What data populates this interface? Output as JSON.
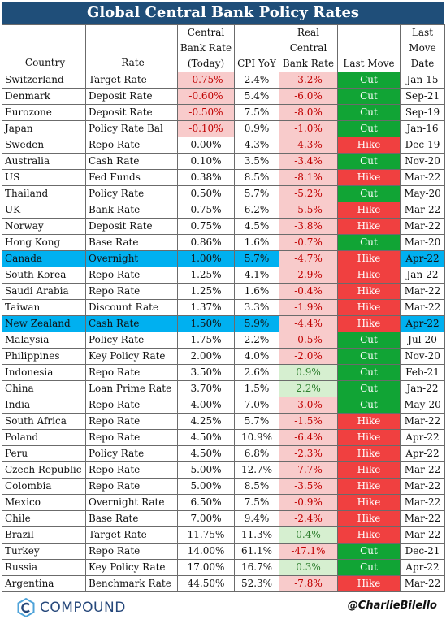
{
  "title": "Global Central Bank Policy Rates",
  "columns": {
    "country": "Country",
    "rate": "Rate",
    "cb_rate": [
      "Central",
      "Bank Rate",
      "(Today)"
    ],
    "cpi": "CPI YoY",
    "real": [
      "Real",
      "Central",
      "Bank Rate"
    ],
    "last_move": "Last Move",
    "last_move_date": [
      "Last",
      "Move",
      "Date"
    ]
  },
  "rows": [
    {
      "country": "Switzerland",
      "rate_name": "Target Rate",
      "rate": "-0.75%",
      "cpi": "2.4%",
      "real": "-3.2%",
      "move": "Cut",
      "date": "Jan-15"
    },
    {
      "country": "Denmark",
      "rate_name": "Deposit Rate",
      "rate": "-0.60%",
      "cpi": "5.4%",
      "real": "-6.0%",
      "move": "Cut",
      "date": "Sep-21"
    },
    {
      "country": "Eurozone",
      "rate_name": "Deposit Rate",
      "rate": "-0.50%",
      "cpi": "7.5%",
      "real": "-8.0%",
      "move": "Cut",
      "date": "Sep-19"
    },
    {
      "country": "Japan",
      "rate_name": "Policy Rate Bal",
      "rate": "-0.10%",
      "cpi": "0.9%",
      "real": "-1.0%",
      "move": "Cut",
      "date": "Jan-16"
    },
    {
      "country": "Sweden",
      "rate_name": "Repo Rate",
      "rate": "0.00%",
      "cpi": "4.3%",
      "real": "-4.3%",
      "move": "Hike",
      "date": "Dec-19"
    },
    {
      "country": "Australia",
      "rate_name": "Cash Rate",
      "rate": "0.10%",
      "cpi": "3.5%",
      "real": "-3.4%",
      "move": "Cut",
      "date": "Nov-20"
    },
    {
      "country": "US",
      "rate_name": "Fed Funds",
      "rate": "0.38%",
      "cpi": "8.5%",
      "real": "-8.1%",
      "move": "Hike",
      "date": "Mar-22"
    },
    {
      "country": "Thailand",
      "rate_name": "Policy Rate",
      "rate": "0.50%",
      "cpi": "5.7%",
      "real": "-5.2%",
      "move": "Cut",
      "date": "May-20"
    },
    {
      "country": "UK",
      "rate_name": "Bank Rate",
      "rate": "0.75%",
      "cpi": "6.2%",
      "real": "-5.5%",
      "move": "Hike",
      "date": "Mar-22"
    },
    {
      "country": "Norway",
      "rate_name": "Deposit Rate",
      "rate": "0.75%",
      "cpi": "4.5%",
      "real": "-3.8%",
      "move": "Hike",
      "date": "Mar-22"
    },
    {
      "country": "Hong Kong",
      "rate_name": "Base Rate",
      "rate": "0.86%",
      "cpi": "1.6%",
      "real": "-0.7%",
      "move": "Cut",
      "date": "Mar-20"
    },
    {
      "country": "Canada",
      "rate_name": "Overnight",
      "rate": "1.00%",
      "cpi": "5.7%",
      "real": "-4.7%",
      "move": "Hike",
      "date": "Apr-22",
      "highlight": true
    },
    {
      "country": "South Korea",
      "rate_name": "Repo Rate",
      "rate": "1.25%",
      "cpi": "4.1%",
      "real": "-2.9%",
      "move": "Hike",
      "date": "Jan-22"
    },
    {
      "country": "Saudi Arabia",
      "rate_name": "Repo Rate",
      "rate": "1.25%",
      "cpi": "1.6%",
      "real": "-0.4%",
      "move": "Hike",
      "date": "Mar-22"
    },
    {
      "country": "Taiwan",
      "rate_name": "Discount Rate",
      "rate": "1.37%",
      "cpi": "3.3%",
      "real": "-1.9%",
      "move": "Hike",
      "date": "Mar-22"
    },
    {
      "country": "New Zealand",
      "rate_name": "Cash Rate",
      "rate": "1.50%",
      "cpi": "5.9%",
      "real": "-4.4%",
      "move": "Hike",
      "date": "Apr-22",
      "highlight": true
    },
    {
      "country": "Malaysia",
      "rate_name": "Policy Rate",
      "rate": "1.75%",
      "cpi": "2.2%",
      "real": "-0.5%",
      "move": "Cut",
      "date": "Jul-20"
    },
    {
      "country": "Philippines",
      "rate_name": "Key Policy Rate",
      "rate": "2.00%",
      "cpi": "4.0%",
      "real": "-2.0%",
      "move": "Cut",
      "date": "Nov-20"
    },
    {
      "country": "Indonesia",
      "rate_name": "Repo Rate",
      "rate": "3.50%",
      "cpi": "2.6%",
      "real": "0.9%",
      "move": "Cut",
      "date": "Feb-21"
    },
    {
      "country": "China",
      "rate_name": "Loan Prime Rate",
      "rate": "3.70%",
      "cpi": "1.5%",
      "real": "2.2%",
      "move": "Cut",
      "date": "Jan-22"
    },
    {
      "country": "India",
      "rate_name": "Repo Rate",
      "rate": "4.00%",
      "cpi": "7.0%",
      "real": "-3.0%",
      "move": "Cut",
      "date": "May-20"
    },
    {
      "country": "South Africa",
      "rate_name": "Repo Rate",
      "rate": "4.25%",
      "cpi": "5.7%",
      "real": "-1.5%",
      "move": "Hike",
      "date": "Mar-22"
    },
    {
      "country": "Poland",
      "rate_name": "Repo Rate",
      "rate": "4.50%",
      "cpi": "10.9%",
      "real": "-6.4%",
      "move": "Hike",
      "date": "Apr-22"
    },
    {
      "country": "Peru",
      "rate_name": "Policy Rate",
      "rate": "4.50%",
      "cpi": "6.8%",
      "real": "-2.3%",
      "move": "Hike",
      "date": "Apr-22"
    },
    {
      "country": "Czech Republic",
      "rate_name": "Repo Rate",
      "rate": "5.00%",
      "cpi": "12.7%",
      "real": "-7.7%",
      "move": "Hike",
      "date": "Mar-22"
    },
    {
      "country": "Colombia",
      "rate_name": "Repo Rate",
      "rate": "5.00%",
      "cpi": "8.5%",
      "real": "-3.5%",
      "move": "Hike",
      "date": "Mar-22"
    },
    {
      "country": "Mexico",
      "rate_name": "Overnight Rate",
      "rate": "6.50%",
      "cpi": "7.5%",
      "real": "-0.9%",
      "move": "Hike",
      "date": "Mar-22"
    },
    {
      "country": "Chile",
      "rate_name": "Base Rate",
      "rate": "7.00%",
      "cpi": "9.4%",
      "real": "-2.4%",
      "move": "Hike",
      "date": "Mar-22"
    },
    {
      "country": "Brazil",
      "rate_name": "Target Rate",
      "rate": "11.75%",
      "cpi": "11.3%",
      "real": "0.4%",
      "move": "Hike",
      "date": "Mar-22"
    },
    {
      "country": "Turkey",
      "rate_name": "Repo Rate",
      "rate": "14.00%",
      "cpi": "61.1%",
      "real": "-47.1%",
      "move": "Cut",
      "date": "Dec-21"
    },
    {
      "country": "Russia",
      "rate_name": "Key Policy Rate",
      "rate": "17.00%",
      "cpi": "16.7%",
      "real": "0.3%",
      "move": "Cut",
      "date": "Apr-22"
    },
    {
      "country": "Argentina",
      "rate_name": "Benchmark Rate",
      "rate": "44.50%",
      "cpi": "52.3%",
      "real": "-7.8%",
      "move": "Hike",
      "date": "Mar-22"
    }
  ],
  "footer": {
    "logo_text": "COMPOUND",
    "logo_icon": "compound-logo-icon",
    "handle": "@CharlieBilello"
  },
  "colors": {
    "title_bg": "#1f4e79",
    "highlight_row": "#00b0f0",
    "negative_bg": "#f8cbcb",
    "negative_text": "#c00000",
    "positive_bg": "#d6efd0",
    "positive_text": "#2d7d2d",
    "cut": "#11a435",
    "hike": "#f04040"
  }
}
